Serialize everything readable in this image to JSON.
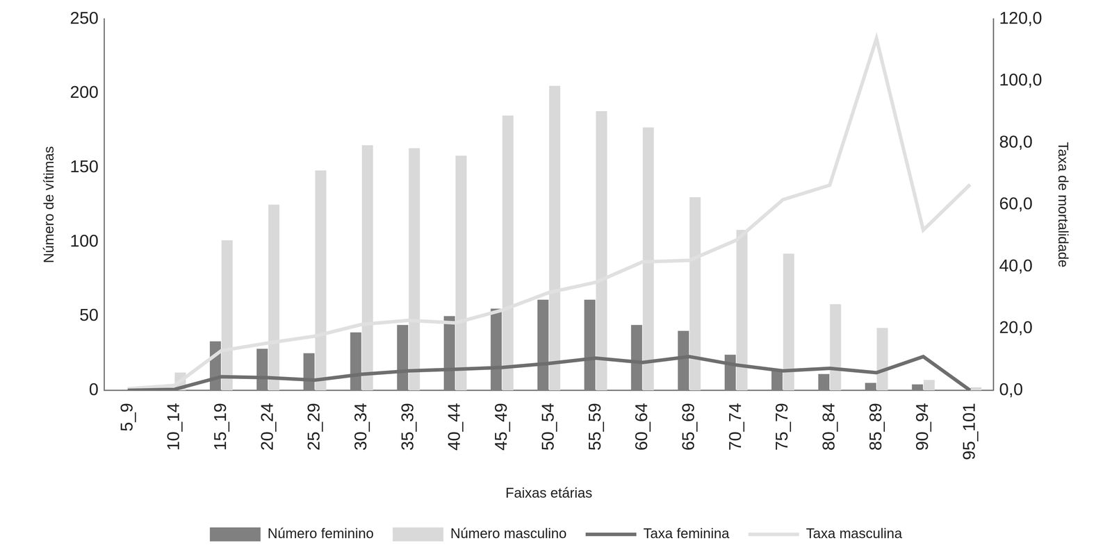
{
  "chart_data": {
    "type": "bar",
    "x_label": "Faixas etárias",
    "y_label": "Número de vítimas",
    "y2_label": "Taxa de mortalidade",
    "categories": [
      "5_9",
      "10_14",
      "15_19",
      "20_24",
      "25_29",
      "30_34",
      "35_39",
      "40_44",
      "45_49",
      "50_54",
      "55_59",
      "60_64",
      "65_69",
      "70_74",
      "75_79",
      "80_84",
      "85_89",
      "90_94",
      "95_101"
    ],
    "series": [
      {
        "name": "Número feminino",
        "type": "bar",
        "color": "#808080",
        "values": [
          0,
          0,
          33,
          28,
          25,
          39,
          44,
          50,
          55,
          61,
          61,
          44,
          40,
          24,
          13,
          11,
          5,
          4,
          0
        ]
      },
      {
        "name": "Número masculino",
        "type": "bar",
        "color": "#d9d9d9",
        "values": [
          0,
          12,
          101,
          125,
          148,
          165,
          163,
          158,
          185,
          205,
          188,
          177,
          130,
          108,
          92,
          58,
          42,
          7,
          2
        ]
      },
      {
        "name": "Taxa feminina",
        "type": "line",
        "axis": "y2",
        "color": "#6e6e6e",
        "values": [
          0,
          0.3,
          4.4,
          4.1,
          3.3,
          5.2,
          6.3,
          6.8,
          7.4,
          8.7,
          10.4,
          9.0,
          10.9,
          8.2,
          6.3,
          7.1,
          5.7,
          10.9,
          0
        ]
      },
      {
        "name": "Taxa masculina",
        "type": "line",
        "axis": "y2",
        "color": "#e0e0e0",
        "values": [
          0.5,
          1.6,
          12.8,
          15.3,
          17.5,
          21.3,
          22.6,
          21.8,
          25.9,
          31.6,
          34.9,
          41.5,
          42.0,
          48.5,
          61.6,
          66.3,
          113.7,
          51.8,
          66.5
        ]
      }
    ],
    "ylim": [
      0,
      250
    ],
    "yticks": [
      0,
      50,
      100,
      150,
      200,
      250
    ],
    "y2lim": [
      0,
      120
    ],
    "y2ticks": [
      {
        "value": 0,
        "label": "0,0"
      },
      {
        "value": 20,
        "label": "20,0"
      },
      {
        "value": 40,
        "label": "40,0"
      },
      {
        "value": 60,
        "label": "60,0"
      },
      {
        "value": 80,
        "label": "80,0"
      },
      {
        "value": 100,
        "label": "100,0"
      },
      {
        "value": 120,
        "label": "120,0"
      }
    ],
    "grid": false,
    "legend": "bottom"
  }
}
